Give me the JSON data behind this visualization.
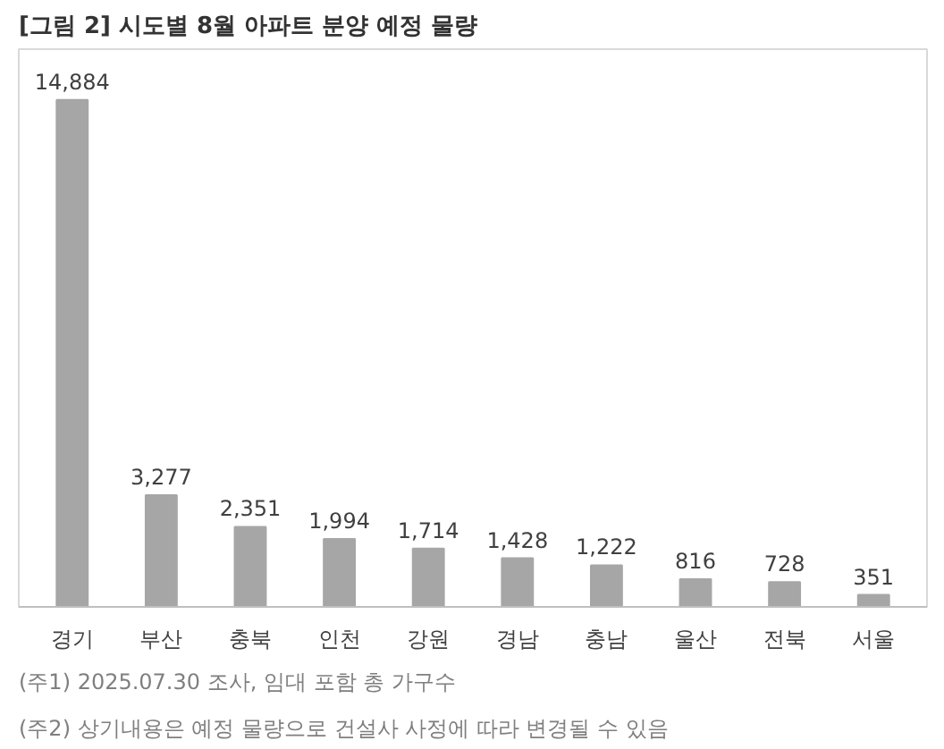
{
  "chart_data": {
    "type": "bar",
    "title": "[그림 2] 시도별 8월 아파트 분양 예정 물량",
    "categories": [
      "경기",
      "부산",
      "충북",
      "인천",
      "강원",
      "경남",
      "충남",
      "울산",
      "전북",
      "서울"
    ],
    "values": [
      14884,
      3277,
      2351,
      1994,
      1714,
      1428,
      1222,
      816,
      728,
      351
    ],
    "value_labels": [
      "14,884",
      "3,277",
      "2,351",
      "1,994",
      "1,714",
      "1,428",
      "1,222",
      "816",
      "728",
      "351"
    ],
    "color": "#a6a6a6",
    "annotations": [
      "(주1) 2025.07.30 조사, 임대 포함 총 가구수",
      "(주2) 상기내용은 예정 물량으로 건설사 사정에 따라 변경될 수 있음"
    ]
  }
}
